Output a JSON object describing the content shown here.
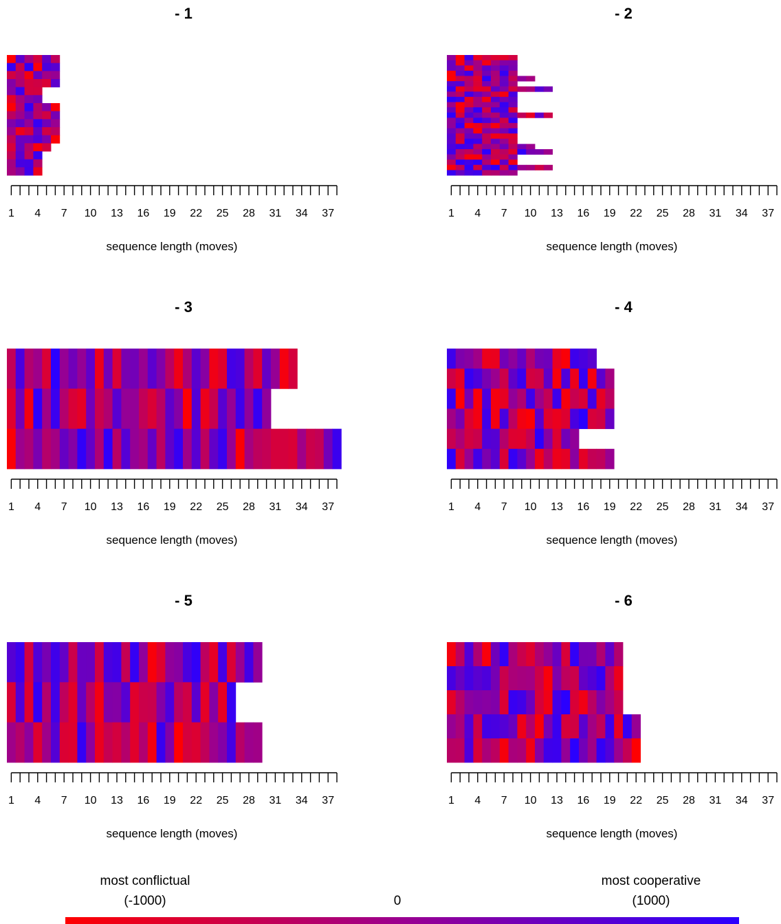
{
  "chart_data": {
    "type": "heatmap",
    "xlabel": "sequence length (moves)",
    "x_ticks": [
      1,
      4,
      7,
      10,
      13,
      16,
      19,
      22,
      25,
      28,
      31,
      34,
      37
    ],
    "x_range": [
      1,
      38
    ],
    "color_scale": {
      "min": -1000,
      "mid": 0,
      "max": 1000,
      "low_color": "#ff0000",
      "high_color": "#2a00ff"
    },
    "legend": {
      "left_label": "most conflictual",
      "left_value": "(-1000)",
      "mid_value": "0",
      "right_label": "most cooperative",
      "right_value": "(1000)"
    },
    "panels": [
      {
        "title": "- 1",
        "lengths": [
          6,
          6,
          6,
          6,
          4,
          4,
          6,
          6,
          6,
          6,
          6,
          5,
          4,
          4,
          4
        ]
      },
      {
        "title": "- 2",
        "lengths": [
          8,
          8,
          8,
          8,
          10,
          8,
          12,
          8,
          8,
          8,
          8,
          12,
          8,
          8,
          8,
          8,
          8,
          10,
          12,
          8,
          8,
          12,
          8
        ]
      },
      {
        "title": "- 3",
        "lengths": [
          33,
          30,
          38
        ]
      },
      {
        "title": "- 4",
        "lengths": [
          17,
          19,
          19,
          19,
          15,
          19
        ]
      },
      {
        "title": "- 5",
        "lengths": [
          29,
          26,
          29
        ]
      },
      {
        "title": "- 6",
        "lengths": [
          20,
          20,
          20,
          22,
          22
        ]
      }
    ]
  }
}
